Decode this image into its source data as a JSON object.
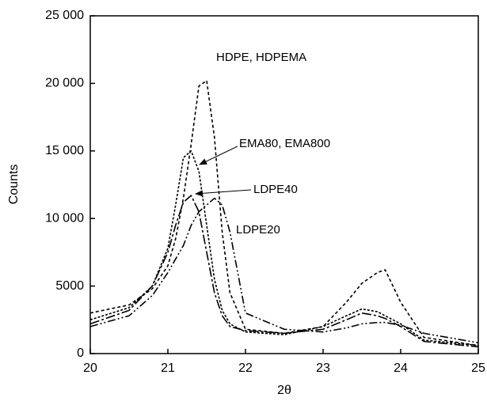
{
  "chart_data": {
    "type": "line",
    "x_label": "2θ",
    "y_label": "Counts",
    "x": [
      20,
      20.5,
      20.8,
      21,
      21.1,
      21.2,
      21.3,
      21.4,
      21.5,
      21.6,
      21.7,
      21.8,
      22,
      22.5,
      23,
      23.3,
      23.5,
      23.7,
      23.8,
      24,
      24.3,
      25
    ],
    "series": [
      {
        "name": "HDPE, HDPEMA",
        "color": "#000000",
        "values": [
          3000,
          3600,
          4800,
          6500,
          8500,
          11500,
          15500,
          19800,
          20200,
          16000,
          9000,
          4500,
          1800,
          1500,
          2000,
          3800,
          5200,
          6000,
          6200,
          3800,
          1200,
          600
        ]
      },
      {
        "name": "EMA80, EMA800",
        "color": "#000000",
        "values": [
          2500,
          3400,
          5000,
          7800,
          11000,
          14500,
          15000,
          13500,
          9500,
          5500,
          3200,
          2200,
          1600,
          1400,
          2000,
          2800,
          3300,
          3100,
          2800,
          2200,
          1000,
          600
        ]
      },
      {
        "name": "LDPE40",
        "color": "#000000",
        "values": [
          2200,
          3200,
          5000,
          7500,
          9500,
          11200,
          11700,
          10500,
          7500,
          4500,
          2800,
          2000,
          1700,
          1500,
          1800,
          2500,
          3000,
          2800,
          2600,
          2000,
          900,
          500
        ]
      },
      {
        "name": "LDPE20",
        "color": "#000000",
        "values": [
          2000,
          2800,
          4300,
          6000,
          7000,
          8000,
          9500,
          10500,
          11000,
          11500,
          11000,
          9000,
          3000,
          1800,
          1600,
          1900,
          2200,
          2300,
          2300,
          2100,
          1500,
          800
        ]
      }
    ],
    "xlim": [
      20,
      25
    ],
    "xticks": [
      20,
      21,
      22,
      23,
      24,
      25
    ],
    "ylim": [
      0,
      25000
    ],
    "yticks": [
      0,
      5000,
      {
        "value": 10000,
        "label": "10 000"
      },
      {
        "value": 15000,
        "label": "15 000"
      },
      {
        "value": 20000,
        "label": "20 000"
      },
      {
        "value": 25000,
        "label": "25 000"
      }
    ]
  }
}
